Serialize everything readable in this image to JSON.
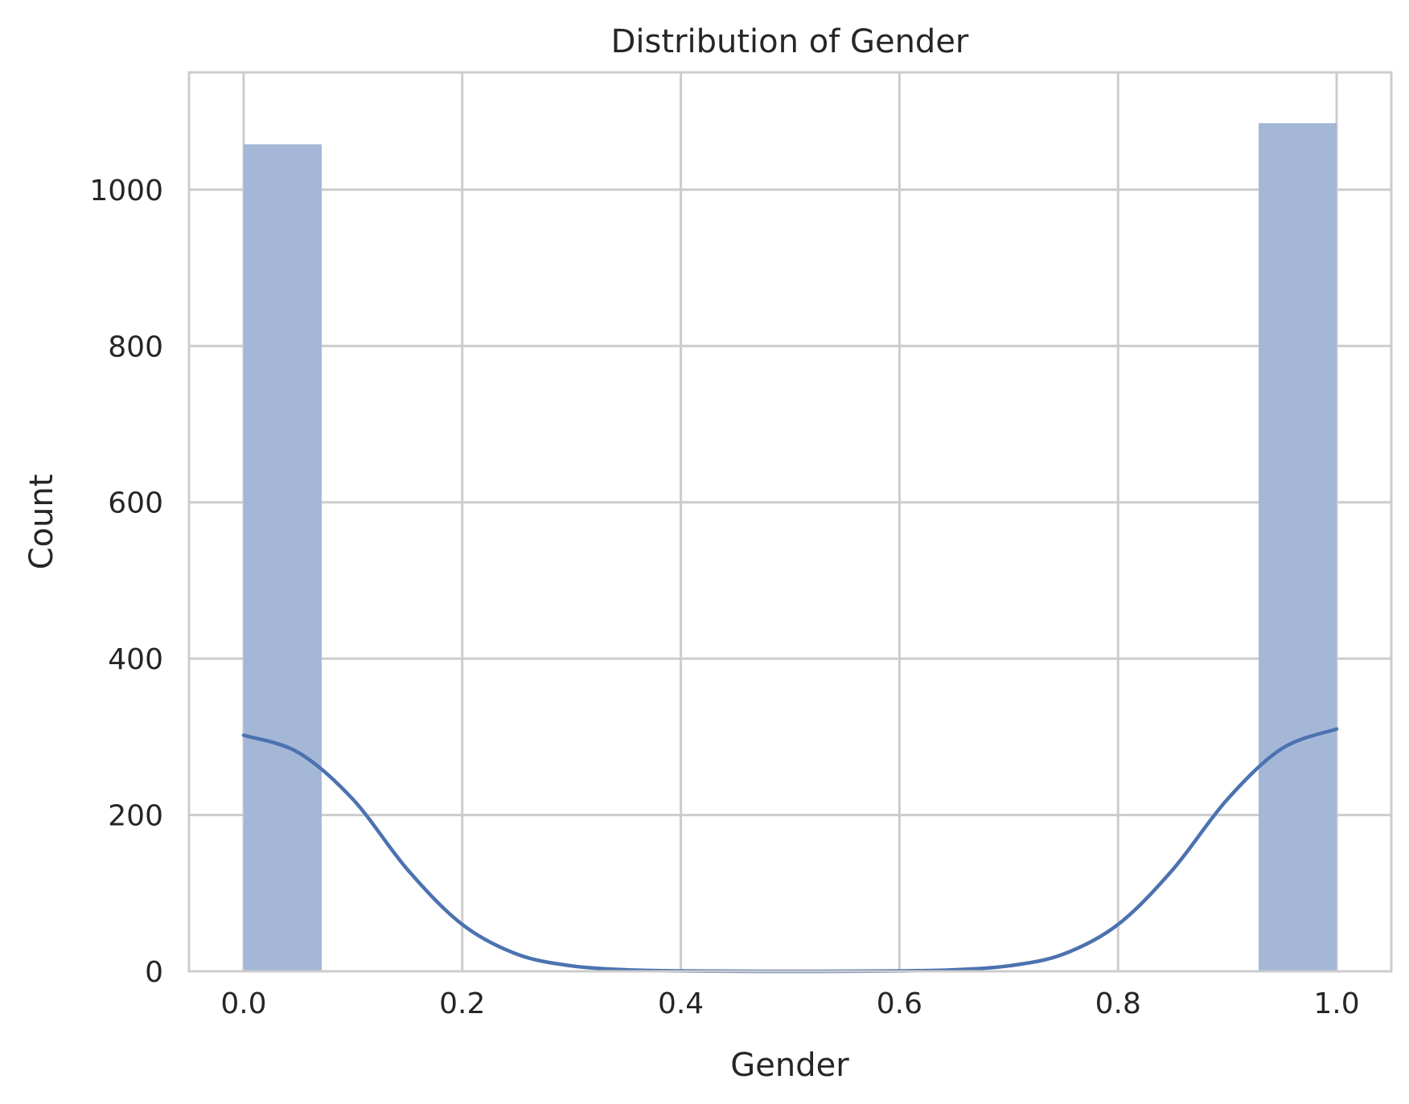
{
  "chart_data": {
    "type": "bar",
    "title": "Distribution of Gender",
    "xlabel": "Gender",
    "ylabel": "Count",
    "xlim": [
      -0.05,
      1.05
    ],
    "ylim": [
      0,
      1150
    ],
    "xticks": [
      0.0,
      0.2,
      0.4,
      0.6,
      0.8,
      1.0
    ],
    "xtick_labels": [
      "0.0",
      "0.2",
      "0.4",
      "0.6",
      "0.8",
      "1.0"
    ],
    "yticks": [
      0,
      200,
      400,
      600,
      800,
      1000
    ],
    "ytick_labels": [
      "0",
      "200",
      "400",
      "600",
      "800",
      "1000"
    ],
    "grid": true,
    "bars": [
      {
        "x0": 0.0,
        "x1": 0.0714,
        "value": 1058
      },
      {
        "x0": 0.9286,
        "x1": 1.0,
        "value": 1085
      }
    ],
    "kde_line": {
      "x": [
        0.0,
        0.05,
        0.1,
        0.15,
        0.2,
        0.25,
        0.3,
        0.35,
        0.4,
        0.45,
        0.5,
        0.55,
        0.6,
        0.65,
        0.7,
        0.75,
        0.8,
        0.85,
        0.9,
        0.95,
        1.0
      ],
      "y": [
        302,
        280,
        220,
        130,
        60,
        22,
        7,
        2,
        0.5,
        0.1,
        0.05,
        0.1,
        0.5,
        2,
        7,
        22,
        60,
        130,
        220,
        285,
        310
      ]
    },
    "colors": {
      "bar_fill": "#a4b7d7",
      "line": "#4c72b0",
      "grid": "#cccccc",
      "axes": "#cccccc",
      "text": "#262626"
    }
  }
}
